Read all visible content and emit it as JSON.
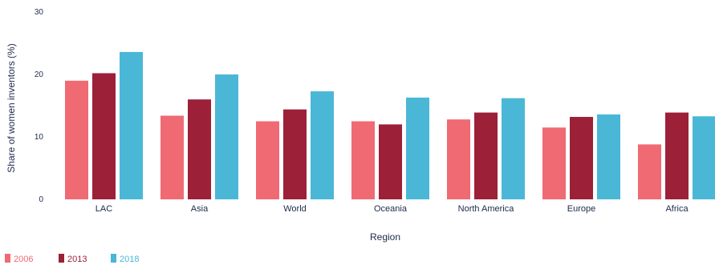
{
  "chart_data": {
    "type": "bar",
    "title": "",
    "xlabel": "Region",
    "ylabel": "Share of women inventors (%)",
    "ylim": [
      0,
      30
    ],
    "yticks": [
      0,
      10,
      20,
      30
    ],
    "grid": false,
    "legend_position": "bottom-left",
    "categories": [
      "LAC",
      "Asia",
      "World",
      "Oceania",
      "North America",
      "Europe",
      "Africa"
    ],
    "series": [
      {
        "name": "2006",
        "color": "#f06a73",
        "values": [
          19.0,
          13.4,
          12.5,
          12.5,
          12.8,
          11.5,
          8.8
        ]
      },
      {
        "name": "2013",
        "color": "#9b2038",
        "values": [
          20.2,
          16.0,
          14.4,
          12.0,
          13.9,
          13.2,
          13.9
        ]
      },
      {
        "name": "2018",
        "color": "#4bb7d6",
        "values": [
          23.6,
          20.0,
          17.3,
          16.3,
          16.2,
          13.6,
          13.3
        ]
      }
    ]
  }
}
